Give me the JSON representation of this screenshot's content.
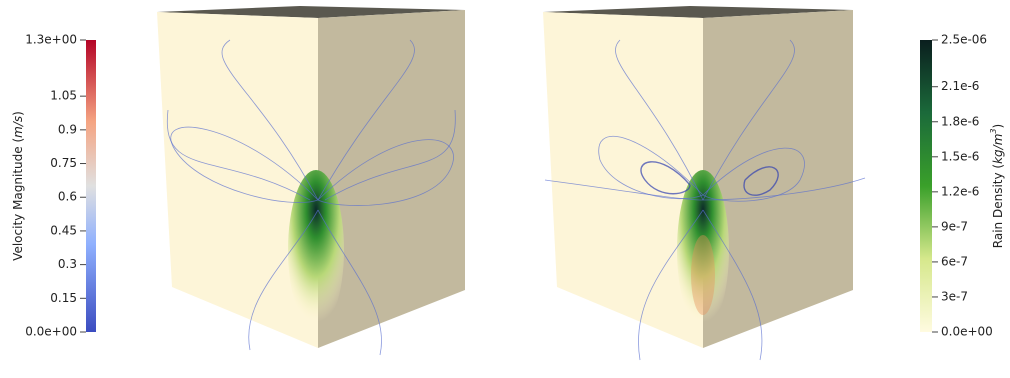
{
  "left_colorbar": {
    "label_parts": [
      "Velocity Magnitude (",
      "m/s",
      ")"
    ],
    "range": [
      0,
      1.3
    ],
    "ticks": [
      {
        "value": 1.3,
        "label": "1.3e+00"
      },
      1.05,
      0.9,
      0.75,
      0.6,
      0.45,
      0.3,
      0.15,
      {
        "value": 0,
        "label": "0.0e+00"
      }
    ]
  },
  "right_colorbar": {
    "label_parts": [
      "Rain Density (",
      "kg/m",
      "3",
      ")"
    ],
    "range": [
      0,
      2.5e-06
    ],
    "ticks": [
      {
        "value": 2.5e-06,
        "label": "2.5e-06"
      },
      {
        "value": 2.1e-06,
        "label": "2.1e-6"
      },
      {
        "value": 1.8e-06,
        "label": "1.8e-6"
      },
      {
        "value": 1.5e-06,
        "label": "1.5e-6"
      },
      {
        "value": 1.2e-06,
        "label": "1.2e-6"
      },
      {
        "value": 9e-07,
        "label": "9e-7"
      },
      {
        "value": 6e-07,
        "label": "6e-7"
      },
      {
        "value": 3e-07,
        "label": "3e-7"
      },
      {
        "value": 0,
        "label": "0.0e+00"
      }
    ]
  }
}
